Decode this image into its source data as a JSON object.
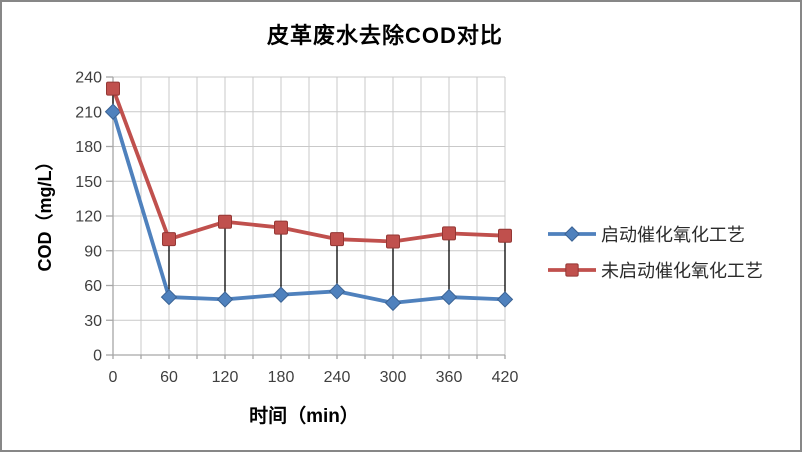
{
  "frame": {
    "border_color": "#878787",
    "background": "#FFFFFF"
  },
  "chart_data": {
    "type": "line",
    "title": "皮革废水去除COD对比",
    "xlabel": "时间（min）",
    "ylabel": "COD（mg/L）",
    "x": [
      0,
      60,
      120,
      180,
      240,
      300,
      360,
      420
    ],
    "yticks": [
      0,
      30,
      60,
      90,
      120,
      150,
      180,
      210,
      240
    ],
    "ylim": [
      0,
      240
    ],
    "xlim": [
      0,
      420
    ],
    "grid": true,
    "minor_x_grid_interval_min": 30,
    "high_low_lines": true,
    "legend_position": "right",
    "series": [
      {
        "name": "启动催化氧化工艺",
        "color": "#4F81BD",
        "marker_edge": "#3A6293",
        "marker": "diamond",
        "values": [
          210,
          50,
          48,
          52,
          55,
          45,
          50,
          48
        ]
      },
      {
        "name": "未启动催化氧化工艺",
        "color": "#C0504D",
        "marker_edge": "#943734",
        "marker": "square",
        "values": [
          230,
          100,
          115,
          110,
          100,
          98,
          105,
          103
        ]
      }
    ],
    "colors": {
      "gridline": "#C9C9C9",
      "axis": "#A6A6A6",
      "tick_text": "#3F3F3F",
      "high_low_line": "#000000"
    }
  }
}
